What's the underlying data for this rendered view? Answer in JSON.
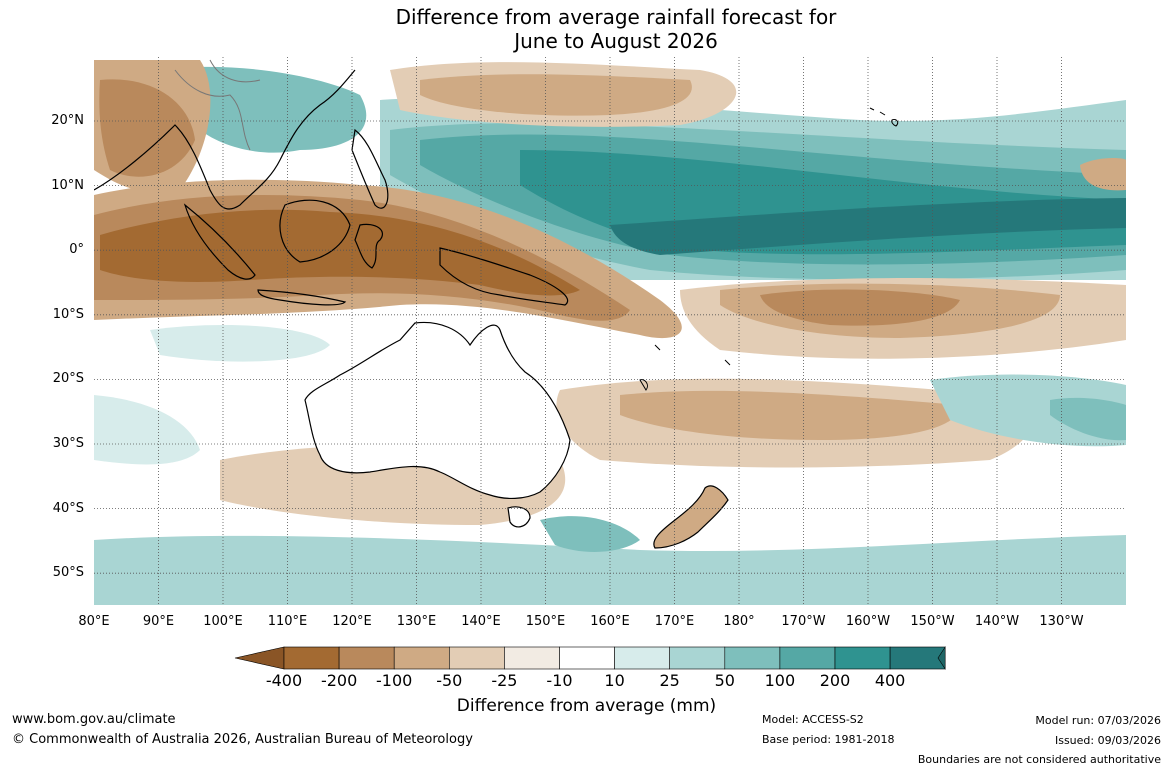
{
  "title_line1": "Difference from average rainfall forecast for",
  "title_line2": "June to August 2026",
  "lon_labels": [
    "80°E",
    "90°E",
    "100°E",
    "110°E",
    "120°E",
    "130°E",
    "140°E",
    "150°E",
    "160°E",
    "170°E",
    "180°",
    "170°W",
    "160°W",
    "150°W",
    "140°W",
    "130°W"
  ],
  "lat_labels": [
    "20°N",
    "10°N",
    "0°",
    "10°S",
    "20°S",
    "30°S",
    "40°S",
    "50°S"
  ],
  "colorbar": {
    "title": "Difference from average (mm)",
    "ticks": [
      "-400",
      "-200",
      "-100",
      "-50",
      "-25",
      "-10",
      "10",
      "25",
      "50",
      "100",
      "200",
      "400"
    ],
    "colors": [
      "#a36a32",
      "#b9895c",
      "#cfaa84",
      "#e3cdb5",
      "#f2ebe3",
      "#ffffff",
      "#d7eceb",
      "#a9d5d3",
      "#7ebfbc",
      "#55a8a5",
      "#2f9390",
      "#25787a"
    ],
    "below_color": "#8a5526",
    "above_color": "#1f6666"
  },
  "footer": {
    "url": "www.bom.gov.au/climate",
    "copyright": "© Commonwealth of Australia 2026, Australian Bureau of Meteorology",
    "model": "Model: ACCESS-S2",
    "base_period": "Base period: 1981-2018",
    "model_run": "Model run: 07/03/2026",
    "issued": "Issued: 09/03/2026",
    "disclaimer": "Boundaries are not considered authoritative"
  }
}
